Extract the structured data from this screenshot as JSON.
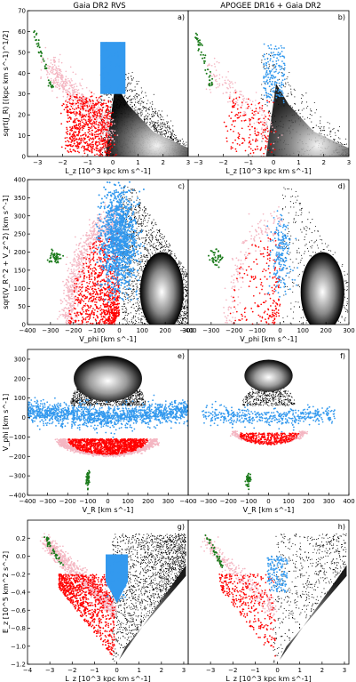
{
  "column_titles": [
    "Gaia DR2 RVS",
    "APOGEE DR16 + Gaia DR2"
  ],
  "colors": {
    "red": "#ff0000",
    "pink": "#f4b6c2",
    "blue": "#3399ee",
    "green": "#1a7a1a",
    "black": "#000000"
  },
  "chart_data": [
    {
      "type": "scatter",
      "panel": "a)",
      "column": "Gaia DR2 RVS",
      "xlabel": "L_z [10^3 kpc km s^-1]",
      "ylabel": "sqrt(J_R) [(kpc km s^-1)^1/2]",
      "xlim": [
        -3.4,
        3
      ],
      "ylim": [
        0,
        70
      ],
      "xticks": [
        "-3",
        "-2",
        "-1",
        "0",
        "1",
        "2",
        "3"
      ],
      "yticks": [
        "0",
        "10",
        "20",
        "30",
        "40",
        "50",
        "60",
        "70"
      ],
      "grid": false
    },
    {
      "type": "scatter",
      "panel": "b)",
      "column": "APOGEE DR16 + Gaia DR2",
      "xlabel": "L_z [10^3 kpc km s^-1]",
      "ylabel": "",
      "xlim": [
        -3.4,
        3
      ],
      "ylim": [
        0,
        70
      ],
      "xticks": [
        "-3",
        "-2",
        "-1",
        "0",
        "1",
        "2",
        "3"
      ],
      "yticks": [],
      "grid": false
    },
    {
      "type": "scatter",
      "panel": "c)",
      "column": "Gaia DR2 RVS",
      "xlabel": "V_phi [km s^-1]",
      "ylabel": "sqrt(V_R^2 + V_z^2) [km s^-1]",
      "xlim": [
        -400,
        300
      ],
      "ylim": [
        0,
        400
      ],
      "xticks": [
        "-400",
        "-300",
        "-200",
        "-100",
        "0",
        "100",
        "200",
        "300"
      ],
      "yticks": [
        "0",
        "50",
        "100",
        "150",
        "200",
        "250",
        "300",
        "350",
        "400"
      ],
      "grid": false
    },
    {
      "type": "scatter",
      "panel": "d)",
      "column": "APOGEE DR16 + Gaia DR2",
      "xlabel": "V_phi [km s^-1]",
      "ylabel": "",
      "xlim": [
        -400,
        300
      ],
      "ylim": [
        0,
        400
      ],
      "xticks": [
        "-400",
        "-300",
        "-200",
        "-100",
        "0",
        "100",
        "200",
        "300"
      ],
      "yticks": [],
      "grid": false
    },
    {
      "type": "scatter",
      "panel": "e)",
      "column": "Gaia DR2 RVS",
      "xlabel": "V_R [km s^-1]",
      "ylabel": "V_phi [km s^-1]",
      "xlim": [
        -400,
        400
      ],
      "ylim": [
        -400,
        350
      ],
      "xticks": [
        "-400",
        "-300",
        "-200",
        "-100",
        "0",
        "100",
        "200",
        "300"
      ],
      "yticks": [
        "-400",
        "-300",
        "-200",
        "-100",
        "0",
        "100",
        "200",
        "300"
      ],
      "grid": false
    },
    {
      "type": "scatter",
      "panel": "f)",
      "column": "APOGEE DR16 + Gaia DR2",
      "xlabel": "V_R [km s^-1]",
      "ylabel": "",
      "xlim": [
        -400,
        400
      ],
      "ylim": [
        -400,
        350
      ],
      "xticks": [
        "-400",
        "-300",
        "-200",
        "-100",
        "0",
        "100",
        "200",
        "300",
        "400"
      ],
      "yticks": [],
      "grid": false
    },
    {
      "type": "scatter",
      "panel": "g)",
      "column": "Gaia DR2 RVS",
      "xlabel": "L_z [10^3 kpc km s^-1]",
      "ylabel": "E_z [10^5 km^2 s^-2]",
      "xlim": [
        -4,
        3.2
      ],
      "ylim": [
        -1.2,
        0.4
      ],
      "xticks": [
        "-4",
        "-3",
        "-2",
        "-1",
        "0",
        "1",
        "2",
        "3"
      ],
      "yticks": [
        "-1.2",
        "-1.0",
        "-0.8",
        "-0.6",
        "-0.4",
        "-0.2",
        "0.0",
        "0.2"
      ],
      "grid": false
    },
    {
      "type": "scatter",
      "panel": "h)",
      "column": "APOGEE DR16 + Gaia DR2",
      "xlabel": "L_z [10^3 kpc km s^-1]",
      "ylabel": "",
      "xlim": [
        -4,
        3.2
      ],
      "ylim": [
        -1.2,
        0.4
      ],
      "xticks": [
        "-3",
        "-2",
        "-1",
        "0",
        "1",
        "2",
        "3"
      ],
      "yticks": [],
      "grid": false
    }
  ]
}
